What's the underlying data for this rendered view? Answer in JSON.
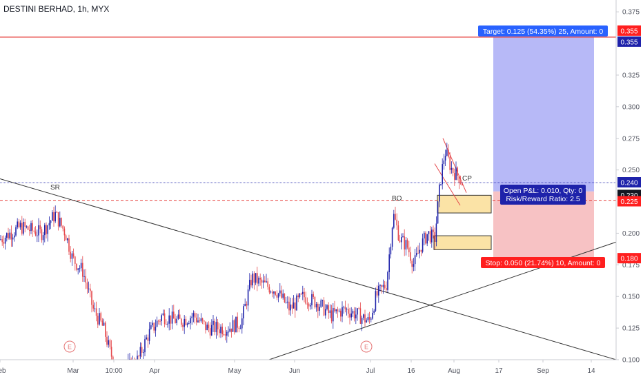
{
  "header": {
    "symbol_title": "DESTINI BERHAD, 1h, MYX"
  },
  "colors": {
    "up": "#1e22aa",
    "down": "#e5494d",
    "target_fill": "#b7b9f7",
    "stop_fill": "#f7c2c4",
    "target_label": "#2962ff",
    "stop_label": "#ff1f1f",
    "resistance": "#e53935",
    "current": "#1e22aa",
    "zone_fill": "#fbe3a6"
  },
  "chart_data": {
    "type": "candlestick",
    "title": "DESTINI BERHAD, 1h, MYX",
    "y_axis": {
      "min": 0.1,
      "max": 0.38,
      "ticks": [
        "0.375",
        "0.355",
        "0.355",
        "0.325",
        "0.300",
        "0.275",
        "0.250",
        "0.240",
        "0.230",
        "0.225",
        "0.200",
        "0.180",
        "0.175",
        "0.150",
        "0.125",
        "0.100"
      ]
    },
    "x_axis": {
      "ticks": [
        "Feb",
        "Mar",
        "10:00",
        "Apr",
        "May",
        "Jun",
        "Jul",
        "16",
        "Aug",
        "17",
        "Sep",
        "14"
      ]
    },
    "price_levels": [
      {
        "name": "target",
        "price": 0.355,
        "label": "0.355"
      },
      {
        "name": "current",
        "price": 0.24,
        "label": "0.240"
      },
      {
        "name": "entry",
        "price": 0.23,
        "label": "0.230"
      },
      {
        "name": "stop-line",
        "price": 0.225,
        "label": "0.225"
      },
      {
        "name": "stop",
        "price": 0.18,
        "label": "0.180"
      }
    ],
    "position": {
      "target_text": "Target: 0.125 (54.35%) 25, Amount: 0",
      "pnl_text": "Open P&L: 0.010, Qty: 0",
      "rr_text": "Risk/Reward Ratio: 2.5",
      "stop_text": "Stop: 0.050 (21.74%) 10, Amount: 0"
    },
    "annotations": [
      {
        "text": "SR"
      },
      {
        "text": "BO"
      },
      {
        "text": "CP"
      },
      {
        "text": "E"
      },
      {
        "text": "E"
      }
    ],
    "price_path": [
      [
        0,
        0.195
      ],
      [
        30,
        0.205
      ],
      [
        60,
        0.2
      ],
      [
        80,
        0.215
      ],
      [
        95,
        0.2
      ],
      [
        105,
        0.18
      ],
      [
        120,
        0.17
      ],
      [
        135,
        0.14
      ],
      [
        150,
        0.125
      ],
      [
        160,
        0.105
      ],
      [
        175,
        0.09
      ],
      [
        200,
        0.1
      ],
      [
        215,
        0.12
      ],
      [
        235,
        0.135
      ],
      [
        260,
        0.13
      ],
      [
        280,
        0.135
      ],
      [
        300,
        0.125
      ],
      [
        330,
        0.125
      ],
      [
        350,
        0.13
      ],
      [
        365,
        0.165
      ],
      [
        380,
        0.16
      ],
      [
        400,
        0.155
      ],
      [
        420,
        0.14
      ],
      [
        440,
        0.15
      ],
      [
        460,
        0.145
      ],
      [
        480,
        0.135
      ],
      [
        500,
        0.14
      ],
      [
        520,
        0.135
      ],
      [
        535,
        0.13
      ],
      [
        545,
        0.15
      ],
      [
        560,
        0.16
      ],
      [
        570,
        0.215
      ],
      [
        580,
        0.195
      ],
      [
        590,
        0.19
      ],
      [
        600,
        0.175
      ],
      [
        610,
        0.19
      ],
      [
        620,
        0.2
      ],
      [
        630,
        0.195
      ],
      [
        638,
        0.24
      ],
      [
        645,
        0.265
      ],
      [
        655,
        0.25
      ],
      [
        665,
        0.245
      ],
      [
        670,
        0.24
      ]
    ]
  }
}
